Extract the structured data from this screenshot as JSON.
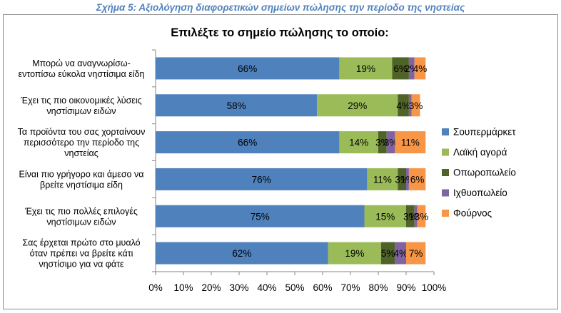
{
  "caption": "Σχήμα 5: Αξιολόγηση διαφορετικών σημείων πώλησης την περίοδο της νηστείας",
  "chart_data": {
    "type": "bar",
    "orientation": "horizontal",
    "stacked": true,
    "title": "Επιλέξτε το σημείο πώλησης το οποίο:",
    "xlim": [
      0,
      100
    ],
    "x_ticks": [
      "0%",
      "10%",
      "20%",
      "30%",
      "40%",
      "50%",
      "60%",
      "70%",
      "80%",
      "90%",
      "100%"
    ],
    "grid": false,
    "legend_position": "right",
    "categories": [
      "Μπορώ να αναγνωρίσω-\nεντοπίσω εύκολα νηστίσιμα είδη",
      "Έχει τις πιο οικονομικές λύσεις\nνηστίσιμων ειδών",
      "Τα προϊόντα του σας χορταίνουν\nπερισσότερο την περίοδο της\nνηστείας",
      "Είναι πιο γρήγορο και άμεσο να\nβρείτε νηστίσιμα είδη",
      "Έχει τις πιο πολλές επιλογές\nνηστίσιμων ειδών",
      "Σας έρχεται πρώτο στο μυαλό\nόταν πρέπει να βρείτε κάτι\nνηστίσιμο για να φάτε"
    ],
    "series": [
      {
        "name": "Σουπερμάρκετ",
        "color": "#4f81bd",
        "values": [
          66,
          58,
          66,
          76,
          75,
          62
        ],
        "labels": [
          "66%",
          "58%",
          "66%",
          "76%",
          "75%",
          "62%"
        ]
      },
      {
        "name": "Λαϊκή αγορά",
        "color": "#9bbb59",
        "values": [
          19,
          29,
          14,
          11,
          15,
          19
        ],
        "labels": [
          "19%",
          "29%",
          "14%",
          "11%",
          "15%",
          "19%"
        ]
      },
      {
        "name": "Οπωροπωλείο",
        "color": "#4f6228",
        "values": [
          6,
          4,
          3,
          3,
          3,
          5
        ],
        "labels": [
          "6%",
          "4%",
          "3%",
          "3%",
          "3%",
          "5%"
        ]
      },
      {
        "name": "Ιχθυοπωλείο",
        "color": "#8064a2",
        "values": [
          2,
          1,
          3,
          1,
          1,
          4
        ],
        "labels": [
          "2%",
          "",
          "3%",
          "1%",
          "1%",
          "4%"
        ]
      },
      {
        "name": "Φούρνος",
        "color": "#f79646",
        "values": [
          4,
          3,
          11,
          6,
          3,
          7
        ],
        "labels": [
          "4%",
          "3%",
          "11%",
          "6%",
          "3%",
          "7%"
        ]
      }
    ]
  }
}
